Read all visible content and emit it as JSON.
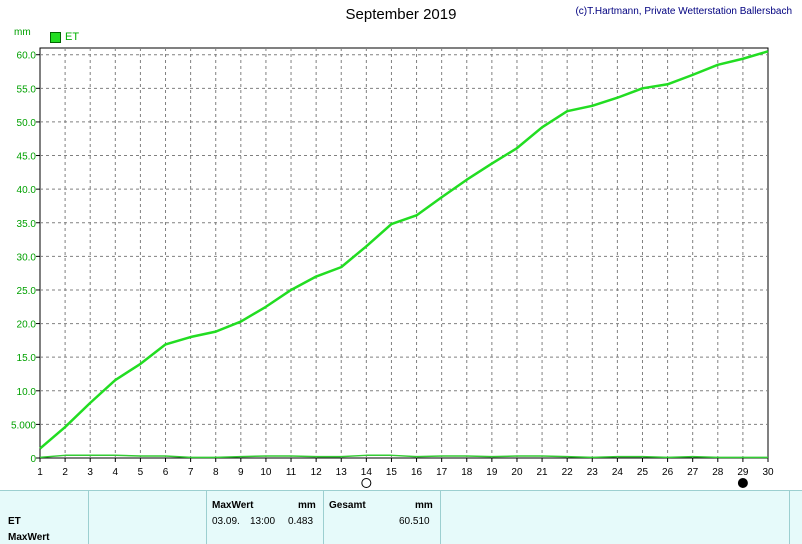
{
  "header": {
    "title": "September 2019",
    "copyright": "(c)T.Hartmann, Private Wetterstation Ballersbach",
    "unit": "mm"
  },
  "legend": {
    "label": "ET",
    "color": "#22dd22"
  },
  "chart_data": {
    "type": "line",
    "title": "September 2019",
    "ylabel": "mm",
    "xlim": [
      1,
      30
    ],
    "ylim": [
      0,
      61
    ],
    "grid": true,
    "x_ticks": [
      "1",
      "2",
      "3",
      "4",
      "5",
      "6",
      "7",
      "8",
      "9",
      "10",
      "11",
      "12",
      "13",
      "14",
      "15",
      "16",
      "17",
      "18",
      "19",
      "20",
      "21",
      "22",
      "23",
      "24",
      "25",
      "26",
      "27",
      "28",
      "29",
      "30"
    ],
    "y_ticks": [
      "0",
      "5.000",
      "10.0",
      "15.0",
      "20.0",
      "25.0",
      "30.0",
      "35.0",
      "40.0",
      "45.0",
      "50.0",
      "55.0",
      "60.0"
    ],
    "y_tick_values": [
      0,
      5,
      10,
      15,
      20,
      25,
      30,
      35,
      40,
      45,
      50,
      55,
      60
    ],
    "series": [
      {
        "name": "ET",
        "color": "#22dd22",
        "x": [
          1,
          2,
          3,
          4,
          5,
          6,
          7,
          8,
          9,
          10,
          11,
          12,
          13,
          14,
          15,
          16,
          17,
          18,
          19,
          20,
          21,
          22,
          23,
          24,
          25,
          26,
          27,
          28,
          29,
          30
        ],
        "values": [
          1.4,
          4.6,
          8.2,
          11.6,
          14.0,
          16.9,
          18.0,
          18.8,
          20.3,
          22.5,
          25.0,
          27.0,
          28.4,
          31.5,
          34.8,
          36.1,
          38.8,
          41.4,
          43.8,
          46.1,
          49.2,
          51.6,
          52.4,
          53.6,
          55.0,
          55.6,
          57.0,
          58.5,
          59.4,
          60.5
        ]
      },
      {
        "name": "ET",
        "color": "#33cc33",
        "x": [
          1,
          2,
          3,
          4,
          5,
          6,
          7,
          8,
          9,
          10,
          11,
          12,
          13,
          14,
          15,
          16,
          17,
          18,
          19,
          20,
          21,
          22,
          23,
          24,
          25,
          26,
          27,
          28,
          29,
          30
        ],
        "values": [
          0.1,
          0.4,
          0.4,
          0.4,
          0.3,
          0.3,
          0.1,
          0.1,
          0.2,
          0.3,
          0.3,
          0.2,
          0.2,
          0.4,
          0.4,
          0.2,
          0.3,
          0.3,
          0.2,
          0.3,
          0.3,
          0.2,
          0.1,
          0.2,
          0.2,
          0.1,
          0.2,
          0.1,
          0.1,
          0.1
        ]
      }
    ],
    "moon_markers": [
      {
        "day": 14,
        "phase": "full"
      },
      {
        "day": 29,
        "phase": "new"
      }
    ]
  },
  "footer": {
    "row_label": "ET",
    "row_label2": "MaxWert",
    "max_header": "MaxWert",
    "max_unit": "mm",
    "max_date": "03.09.",
    "max_time": "13:00",
    "max_value": "0.483",
    "total_header": "Gesamt",
    "total_unit": "mm",
    "total_value": "60.510"
  }
}
